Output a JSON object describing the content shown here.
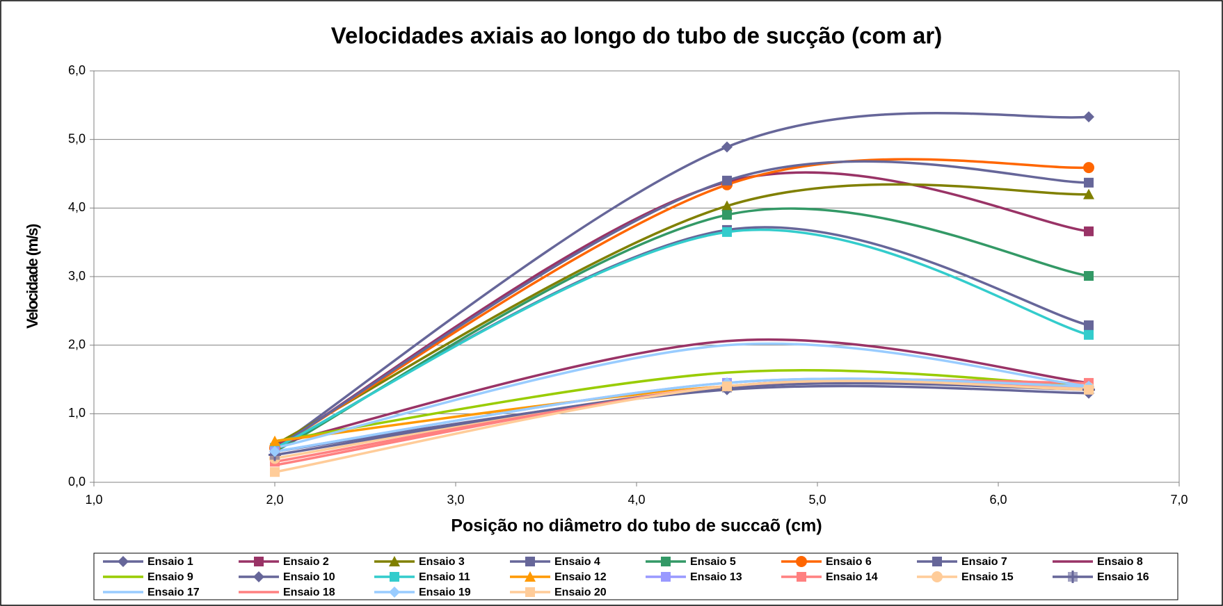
{
  "chart_data": {
    "type": "line",
    "title": "Velocidades axiais ao longo do tubo de sucção (com ar)",
    "x_label": "Posição no diâmetro do tubo de succaõ (cm)",
    "y_label": "Velocidade (m/s)",
    "x": [
      2.0,
      4.5,
      6.5
    ],
    "xlim": [
      1.0,
      7.0
    ],
    "xticks": [
      {
        "value": 1,
        "label": "1,0"
      },
      {
        "value": 2,
        "label": "2,0"
      },
      {
        "value": 3,
        "label": "3,0"
      },
      {
        "value": 4,
        "label": "4,0"
      },
      {
        "value": 5,
        "label": "5,0"
      },
      {
        "value": 6,
        "label": "6,0"
      },
      {
        "value": 7,
        "label": "7,0"
      }
    ],
    "ylim": [
      0.0,
      6.0
    ],
    "yticks": [
      {
        "value": 0,
        "label": "0,0"
      },
      {
        "value": 1,
        "label": "1,0"
      },
      {
        "value": 2,
        "label": "2,0"
      },
      {
        "value": 3,
        "label": "3,0"
      },
      {
        "value": 4,
        "label": "4,0"
      },
      {
        "value": 5,
        "label": "5,0"
      },
      {
        "value": 6,
        "label": "6,0"
      }
    ],
    "grid": true,
    "smooth": true,
    "legend": "bottom",
    "series": [
      {
        "name": "Ensaio 1",
        "color": "#666699",
        "marker": "diamond",
        "values": [
          0.5,
          4.89,
          5.33
        ]
      },
      {
        "name": "Ensaio 2",
        "color": "#993366",
        "marker": "square",
        "values": [
          0.5,
          4.38,
          3.66
        ]
      },
      {
        "name": "Ensaio 3",
        "color": "#808000",
        "marker": "triangle",
        "values": [
          0.55,
          4.03,
          4.2
        ]
      },
      {
        "name": "Ensaio 4",
        "color": "#666699",
        "marker": "square",
        "values": [
          0.5,
          3.68,
          2.29
        ]
      },
      {
        "name": "Ensaio 5",
        "color": "#339966",
        "marker": "square",
        "values": [
          0.45,
          3.9,
          3.01
        ]
      },
      {
        "name": "Ensaio 6",
        "color": "#FF6600",
        "marker": "circle",
        "values": [
          0.5,
          4.34,
          4.59
        ]
      },
      {
        "name": "Ensaio 7",
        "color": "#666699",
        "marker": "square",
        "values": [
          0.5,
          4.4,
          4.37
        ]
      },
      {
        "name": "Ensaio 8",
        "color": "#993366",
        "marker": "none",
        "values": [
          0.55,
          2.06,
          1.45
        ]
      },
      {
        "name": "Ensaio 9",
        "color": "#99CC00",
        "marker": "none",
        "values": [
          0.6,
          1.6,
          1.4
        ]
      },
      {
        "name": "Ensaio 10",
        "color": "#666699",
        "marker": "diamond",
        "values": [
          0.45,
          1.35,
          1.3
        ]
      },
      {
        "name": "Ensaio 11",
        "color": "#33CCCC",
        "marker": "square",
        "values": [
          0.5,
          3.65,
          2.15
        ]
      },
      {
        "name": "Ensaio 12",
        "color": "#FF9900",
        "marker": "triangle",
        "values": [
          0.6,
          1.4,
          1.4
        ]
      },
      {
        "name": "Ensaio 13",
        "color": "#9999FF",
        "marker": "square",
        "values": [
          0.45,
          1.45,
          1.4
        ]
      },
      {
        "name": "Ensaio 14",
        "color": "#FF8080",
        "marker": "square",
        "values": [
          0.3,
          1.4,
          1.45
        ]
      },
      {
        "name": "Ensaio 15",
        "color": "#FFCC99",
        "marker": "circle",
        "values": [
          0.35,
          1.4,
          1.38
        ]
      },
      {
        "name": "Ensaio 16",
        "color": "#666699",
        "marker": "plus",
        "values": [
          0.4,
          1.38,
          1.35
        ]
      },
      {
        "name": "Ensaio 17",
        "color": "#99CCFF",
        "marker": "none",
        "values": [
          0.5,
          2.0,
          1.4
        ]
      },
      {
        "name": "Ensaio 18",
        "color": "#FF8080",
        "marker": "none",
        "values": [
          0.25,
          1.4,
          1.4
        ]
      },
      {
        "name": "Ensaio 19",
        "color": "#99CCFF",
        "marker": "diamond",
        "values": [
          0.45,
          1.45,
          1.4
        ]
      },
      {
        "name": "Ensaio 20",
        "color": "#FFCC99",
        "marker": "square",
        "values": [
          0.15,
          1.4,
          1.35
        ]
      }
    ]
  }
}
